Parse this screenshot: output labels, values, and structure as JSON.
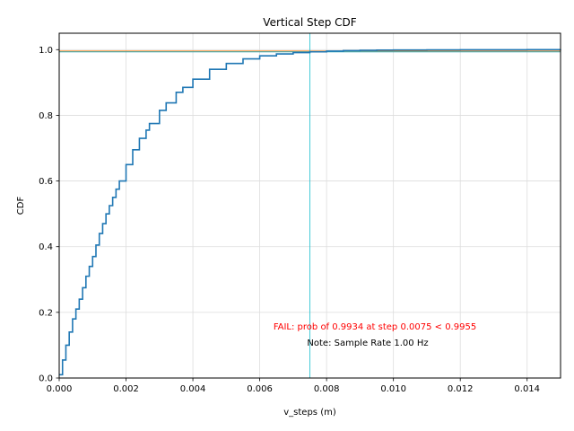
{
  "chart_data": {
    "type": "line",
    "title": "Vertical Step CDF",
    "xlabel": "v_steps (m)",
    "ylabel": "CDF",
    "xlim": [
      0,
      0.015
    ],
    "ylim": [
      0,
      1.05
    ],
    "x_ticks": [
      0,
      0.002,
      0.004,
      0.006,
      0.008,
      0.01,
      0.012,
      0.014
    ],
    "x_tick_labels": [
      "0.000",
      "0.002",
      "0.004",
      "0.006",
      "0.008",
      "0.010",
      "0.012",
      "0.014"
    ],
    "y_ticks": [
      0,
      0.2,
      0.4,
      0.6,
      0.8,
      1.0
    ],
    "y_tick_labels": [
      "0.0",
      "0.2",
      "0.4",
      "0.6",
      "0.8",
      "1.0"
    ],
    "grid": true,
    "series": [
      {
        "color": "#1f77b4",
        "x": [
          0,
          0.0001,
          0.0002,
          0.0003,
          0.0004,
          0.0005,
          0.0006,
          0.0007,
          0.0008,
          0.0009,
          0.001,
          0.0011,
          0.0012,
          0.0013,
          0.0014,
          0.0015,
          0.0016,
          0.0017,
          0.0018,
          0.002,
          0.0022,
          0.0024,
          0.0026,
          0.0027,
          0.003,
          0.0032,
          0.0035,
          0.0037,
          0.004,
          0.0045,
          0.005,
          0.0055,
          0.006,
          0.0065,
          0.007,
          0.0075,
          0.008,
          0.0085,
          0.009,
          0.0095,
          0.01,
          0.011,
          0.012,
          0.013,
          0.014,
          0.015
        ],
        "y": [
          0.01,
          0.055,
          0.1,
          0.14,
          0.18,
          0.21,
          0.24,
          0.275,
          0.31,
          0.34,
          0.37,
          0.405,
          0.44,
          0.47,
          0.5,
          0.525,
          0.55,
          0.575,
          0.6,
          0.65,
          0.695,
          0.73,
          0.755,
          0.775,
          0.815,
          0.838,
          0.87,
          0.885,
          0.91,
          0.94,
          0.958,
          0.972,
          0.981,
          0.987,
          0.991,
          0.9934,
          0.9955,
          0.997,
          0.998,
          0.9985,
          0.999,
          0.9993,
          0.9995,
          0.9997,
          0.9998,
          0.9999
        ]
      }
    ],
    "reference_lines": [
      {
        "orientation": "horizontal",
        "value": 0.9955,
        "color": "#ff7f0e"
      },
      {
        "orientation": "horizontal",
        "value": 0.9934,
        "color": "#2ca9b8"
      },
      {
        "orientation": "vertical",
        "value": 0.0075,
        "color": "#17becf"
      }
    ],
    "annotations": [
      {
        "text": "FAIL: prob of 0.9934 at step 0.0075 < 0.9955",
        "color": "#ff0000"
      },
      {
        "text": "Note: Sample Rate 1.00 Hz",
        "color": "#000000"
      }
    ]
  }
}
